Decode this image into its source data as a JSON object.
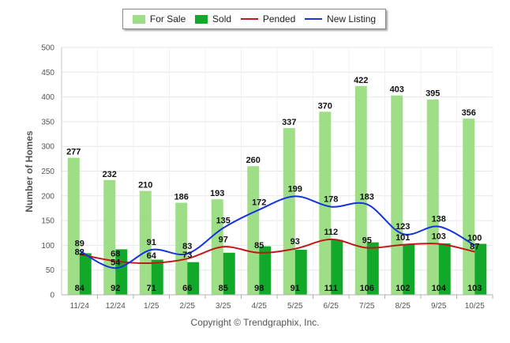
{
  "legend": {
    "items": [
      {
        "label": "For Sale",
        "kind": "bar",
        "color": "#9ede86"
      },
      {
        "label": "Sold",
        "kind": "bar",
        "color": "#12a82a"
      },
      {
        "label": "Pended",
        "kind": "line",
        "color": "#c01818"
      },
      {
        "label": "New Listing",
        "kind": "line",
        "color": "#1533e0"
      }
    ]
  },
  "credit": "Copyright © Trendgraphix, Inc.",
  "chart_data": {
    "type": "bar",
    "title": "",
    "xlabel": "",
    "ylabel": "Number of Homes",
    "ylim": [
      0,
      500
    ],
    "yticks": [
      0,
      50,
      100,
      150,
      200,
      250,
      300,
      350,
      400,
      450,
      500
    ],
    "grid": true,
    "legend_position": "top",
    "categories": [
      "11/24",
      "12/24",
      "1/25",
      "2/25",
      "3/25",
      "4/25",
      "5/25",
      "6/25",
      "7/25",
      "8/25",
      "9/25",
      "10/25"
    ],
    "series": [
      {
        "name": "For Sale",
        "type": "bar",
        "color": "#9ede86",
        "values": [
          277,
          232,
          210,
          186,
          193,
          260,
          337,
          370,
          422,
          403,
          395,
          356
        ]
      },
      {
        "name": "Sold",
        "type": "bar",
        "color": "#12a82a",
        "values": [
          84,
          92,
          71,
          66,
          85,
          98,
          91,
          111,
          106,
          102,
          104,
          103
        ]
      },
      {
        "name": "Pended",
        "type": "line",
        "color": "#c01818",
        "values": [
          82,
          68,
          64,
          73,
          97,
          85,
          93,
          112,
          95,
          101,
          103,
          87
        ]
      },
      {
        "name": "New Listing",
        "type": "line",
        "color": "#1533e0",
        "values": [
          89,
          54,
          91,
          83,
          135,
          172,
          199,
          178,
          183,
          123,
          138,
          100
        ]
      }
    ]
  }
}
